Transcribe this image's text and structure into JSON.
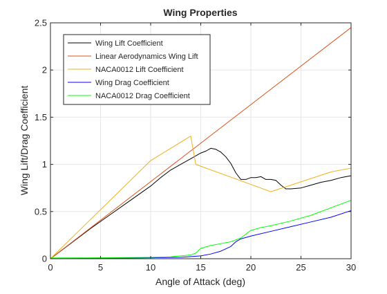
{
  "chart_data": {
    "type": "line",
    "title": "Wing Properties",
    "xlabel": "Angle of Attack (deg)",
    "ylabel": "Wing Lift/Drag Coefficient",
    "xlim": [
      0,
      30
    ],
    "ylim": [
      0,
      2.5
    ],
    "xticks": [
      0,
      5,
      10,
      15,
      20,
      25,
      30
    ],
    "yticks": [
      0,
      0.5,
      1,
      1.5,
      2,
      2.5
    ],
    "xtick_labels": [
      "0",
      "5",
      "10",
      "15",
      "20",
      "25",
      "30"
    ],
    "ytick_labels": [
      "0",
      "0.5",
      "1",
      "1.5",
      "2",
      "2.5"
    ],
    "grid": true,
    "legend_position": "top-left",
    "series": [
      {
        "name": "Wing Lift Coefficient",
        "color": "#000000",
        "x": [
          0,
          2,
          4,
          6,
          8,
          10,
          11,
          12,
          13,
          14,
          15,
          15.5,
          16,
          16.5,
          17,
          17.5,
          18,
          18.5,
          19,
          19.5,
          20,
          20.5,
          21,
          21.5,
          22,
          22.5,
          23,
          23.5,
          24,
          25,
          26,
          27,
          28,
          29,
          30
        ],
        "y": [
          0,
          0.16,
          0.32,
          0.47,
          0.62,
          0.77,
          0.86,
          0.94,
          1.0,
          1.06,
          1.12,
          1.14,
          1.17,
          1.16,
          1.13,
          1.08,
          1.01,
          0.91,
          0.84,
          0.84,
          0.86,
          0.86,
          0.87,
          0.84,
          0.84,
          0.83,
          0.78,
          0.74,
          0.74,
          0.75,
          0.78,
          0.81,
          0.83,
          0.86,
          0.88
        ]
      },
      {
        "name": "Linear Aerodynamics Wing Lift",
        "color": "#d95319",
        "x": [
          0,
          30
        ],
        "y": [
          0,
          2.45
        ]
      },
      {
        "name": "NACA0012 Lift Coefficient",
        "color": "#edb120",
        "x": [
          0,
          10,
          14,
          14.5,
          22,
          28,
          30
        ],
        "y": [
          0,
          1.04,
          1.3,
          1.0,
          0.71,
          0.92,
          0.96
        ]
      },
      {
        "name": "Wing Drag Coefficient",
        "color": "#0000ff",
        "x": [
          0,
          5,
          10,
          13,
          15,
          16,
          17,
          18,
          18.5,
          19,
          20,
          22,
          24,
          26,
          28,
          30
        ],
        "y": [
          0,
          0.005,
          0.01,
          0.015,
          0.03,
          0.05,
          0.08,
          0.13,
          0.18,
          0.21,
          0.24,
          0.29,
          0.34,
          0.39,
          0.44,
          0.51
        ]
      },
      {
        "name": "NACA0012 Drag Coefficient",
        "color": "#00ff00",
        "x": [
          0,
          5,
          10,
          12,
          14,
          14.5,
          15,
          16,
          17,
          18,
          19,
          20,
          21,
          22,
          24,
          26,
          28,
          30
        ],
        "y": [
          0.008,
          0.01,
          0.015,
          0.02,
          0.04,
          0.06,
          0.11,
          0.14,
          0.16,
          0.18,
          0.22,
          0.3,
          0.33,
          0.35,
          0.4,
          0.46,
          0.54,
          0.62
        ]
      }
    ]
  }
}
